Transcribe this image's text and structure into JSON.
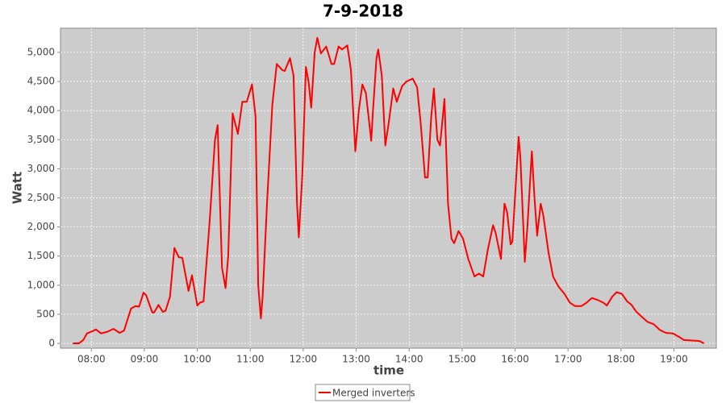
{
  "chart_data": {
    "type": "line",
    "title": "7-9-2018",
    "x_label": "time",
    "y_label": "Watt",
    "x": [
      "07:39",
      "07:46",
      "07:51",
      "07:55",
      "08:03",
      "08:05",
      "08:11",
      "08:18",
      "08:25",
      "08:32",
      "08:37",
      "08:45",
      "08:50",
      "08:54",
      "08:59",
      "09:02",
      "09:09",
      "09:11",
      "09:16",
      "09:21",
      "09:24",
      "09:29",
      "09:34",
      "09:39",
      "09:43",
      "09:50",
      "09:54",
      "10:00",
      "10:03",
      "10:07",
      "10:14",
      "10:20",
      "10:23",
      "10:28",
      "10:32",
      "10:35",
      "10:40",
      "10:46",
      "10:51",
      "10:56",
      "11:02",
      "11:06",
      "11:09",
      "11:12",
      "11:14",
      "11:19",
      "11:25",
      "11:30",
      "11:36",
      "11:39",
      "11:45",
      "11:49",
      "11:53",
      "11:55",
      "11:59",
      "12:03",
      "12:06",
      "12:09",
      "12:13",
      "12:16",
      "12:20",
      "12:26",
      "12:32",
      "12:35",
      "12:40",
      "12:44",
      "12:50",
      "12:54",
      "12:59",
      "13:03",
      "13:07",
      "13:11",
      "13:17",
      "13:19",
      "13:23",
      "13:25",
      "13:29",
      "13:33",
      "13:37",
      "13:42",
      "13:46",
      "13:52",
      "13:57",
      "14:04",
      "14:09",
      "14:13",
      "14:18",
      "14:21",
      "14:25",
      "14:28",
      "14:32",
      "14:35",
      "14:40",
      "14:44",
      "14:48",
      "14:51",
      "14:56",
      "15:01",
      "15:07",
      "15:14",
      "15:19",
      "15:24",
      "15:29",
      "15:35",
      "15:38",
      "15:44",
      "15:48",
      "15:51",
      "15:55",
      "15:57",
      "16:04",
      "16:06",
      "16:11",
      "16:14",
      "16:19",
      "16:22",
      "16:25",
      "16:29",
      "16:32",
      "16:38",
      "16:43",
      "16:49",
      "16:56",
      "17:02",
      "17:08",
      "17:15",
      "17:21",
      "17:27",
      "17:33",
      "17:40",
      "17:44",
      "17:50",
      "17:55",
      "18:01",
      "18:07",
      "18:12",
      "18:17",
      "18:24",
      "18:30",
      "18:37",
      "18:44",
      "18:51",
      "18:59",
      "19:06",
      "19:11",
      "19:19",
      "19:29",
      "19:34"
    ],
    "series": [
      {
        "name": "Merged inverters",
        "color": "#ff0000",
        "values": [
          0,
          0,
          60,
          170,
          220,
          240,
          170,
          200,
          250,
          180,
          220,
          600,
          640,
          630,
          870,
          830,
          530,
          530,
          660,
          540,
          560,
          800,
          1640,
          1480,
          1470,
          900,
          1170,
          650,
          700,
          720,
          2100,
          3500,
          3750,
          1300,
          950,
          1500,
          3950,
          3600,
          4150,
          4150,
          4450,
          3900,
          1000,
          430,
          800,
          2400,
          4100,
          4800,
          4700,
          4680,
          4900,
          4600,
          2400,
          1820,
          2900,
          4750,
          4500,
          4050,
          5000,
          5250,
          4980,
          5100,
          4800,
          4800,
          5100,
          5050,
          5120,
          4700,
          3300,
          4000,
          4450,
          4300,
          3480,
          4000,
          4900,
          5050,
          4600,
          3400,
          3800,
          4380,
          4150,
          4420,
          4500,
          4550,
          4400,
          3800,
          2850,
          2850,
          3900,
          4380,
          3500,
          3400,
          4200,
          2400,
          1800,
          1720,
          1930,
          1800,
          1450,
          1150,
          1200,
          1150,
          1600,
          2030,
          1900,
          1450,
          2400,
          2250,
          1700,
          1750,
          3550,
          3200,
          1400,
          2000,
          3300,
          2500,
          1850,
          2400,
          2200,
          1550,
          1150,
          980,
          850,
          700,
          640,
          640,
          700,
          780,
          750,
          700,
          650,
          800,
          880,
          850,
          720,
          660,
          550,
          450,
          370,
          330,
          230,
          180,
          170,
          110,
          60,
          50,
          40,
          0
        ]
      }
    ],
    "xlim": [
      "07:25",
      "19:48"
    ],
    "xticks": [
      "08:00",
      "09:00",
      "10:00",
      "11:00",
      "12:00",
      "13:00",
      "14:00",
      "15:00",
      "16:00",
      "17:00",
      "18:00",
      "19:00"
    ],
    "ylim": [
      -83,
      5415
    ],
    "yticks": [
      0,
      500,
      {
        "value": 1000,
        "label": "1,000"
      },
      {
        "value": 1500,
        "label": "1,500"
      },
      {
        "value": 2000,
        "label": "2,000"
      },
      {
        "value": 2500,
        "label": "2,500"
      },
      {
        "value": 3000,
        "label": "3,000"
      },
      {
        "value": 3500,
        "label": "3,500"
      },
      {
        "value": 4000,
        "label": "4,000"
      },
      {
        "value": 4500,
        "label": "4,500"
      },
      {
        "value": 5000,
        "label": "5,000"
      }
    ],
    "grid": true,
    "plot_background": "#cccccc",
    "legend": "bottom"
  }
}
